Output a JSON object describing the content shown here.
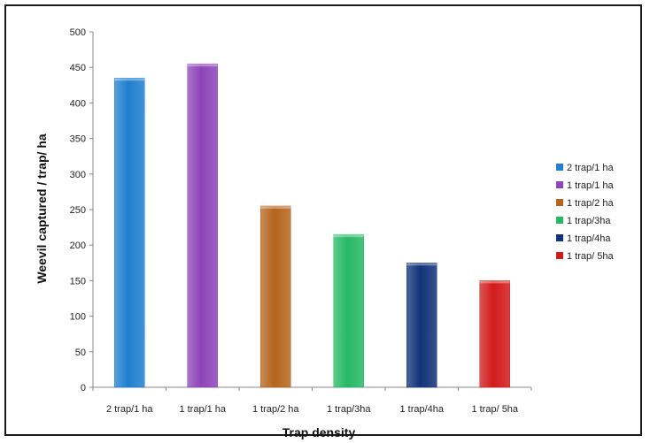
{
  "chart_data": {
    "type": "bar",
    "title": "",
    "xlabel": "Trap density",
    "ylabel": "Weevil captured / trap/ ha",
    "ylim": [
      0,
      500
    ],
    "ytick_step": 50,
    "grid": false,
    "legend_position": "right",
    "categories": [
      "2 trap/1 ha",
      "1 trap/1 ha",
      "1 trap/2 ha",
      "1 trap/3ha",
      "1 trap/4ha",
      "1 trap/ 5ha"
    ],
    "values": [
      435,
      455,
      255,
      215,
      175,
      150
    ],
    "legend": [
      "2 trap/1 ha",
      "1 trap/1 ha",
      "1 trap/2 ha",
      "1 trap/3ha",
      "1 trap/4ha",
      "1 trap/ 5ha"
    ],
    "colors": [
      "#1f7fd0",
      "#8e44b8",
      "#b5651d",
      "#27b866",
      "#12337a",
      "#d11b1b"
    ]
  }
}
